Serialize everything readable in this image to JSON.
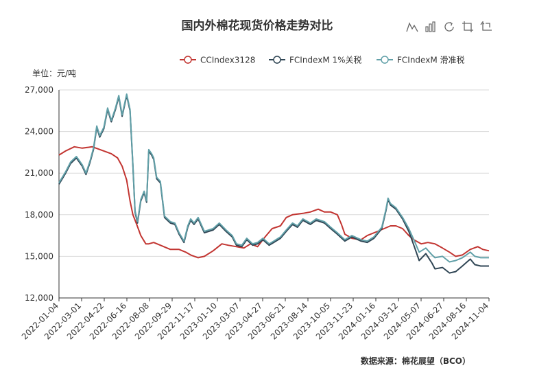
{
  "colors": {
    "CCIndex3128": "#c23531",
    "FCIndexM_tax1": "#2f4554",
    "FCIndexM_slide": "#61a0a8",
    "grid": "#d9d9d9",
    "axis": "#333333",
    "text": "#333333"
  },
  "toolbar": {
    "icons": [
      "line-chart-icon",
      "bar-chart-icon",
      "restore-icon",
      "zoom-icon",
      "zoom-reset-icon"
    ]
  },
  "footer": {
    "source": "数据来源：棉花展望（BCO）"
  },
  "chart_data": {
    "type": "line",
    "title": "国内外棉花现货价格走势对比",
    "unit_label": "单位：元/吨",
    "legend_position": "top-right",
    "grid": true,
    "ylim": [
      12000,
      27000
    ],
    "yticks": [
      12000,
      15000,
      18000,
      21000,
      24000,
      27000
    ],
    "ytick_labels": [
      "12,000",
      "15,000",
      "18,000",
      "21,000",
      "24,000",
      "27,000"
    ],
    "xlim": [
      "2022-01-04",
      "2024-11-04"
    ],
    "xtick_labels": [
      "2022-01-04",
      "2022-03-01",
      "2022-04-22",
      "2022-06-16",
      "2022-08-08",
      "2022-09-29",
      "2022-11-17",
      "2023-01-10",
      "2023-03-07",
      "2023-04-27",
      "2023-06-21",
      "2023-08-14",
      "2023-10-05",
      "2023-11-23",
      "2024-01-16",
      "2024-03-12",
      "2024-05-07",
      "2024-06-27",
      "2024-08-16",
      "2024-11-04"
    ],
    "series": [
      {
        "name": "CCIndex3128",
        "points": [
          [
            "2022-01-04",
            22300
          ],
          [
            "2022-01-20",
            22600
          ],
          [
            "2022-02-10",
            22900
          ],
          [
            "2022-03-01",
            22800
          ],
          [
            "2022-03-25",
            22900
          ],
          [
            "2022-04-22",
            22600
          ],
          [
            "2022-05-10",
            22400
          ],
          [
            "2022-05-25",
            22100
          ],
          [
            "2022-06-05",
            21500
          ],
          [
            "2022-06-16",
            20500
          ],
          [
            "2022-06-24",
            19000
          ],
          [
            "2022-07-01",
            18000
          ],
          [
            "2022-07-10",
            17300
          ],
          [
            "2022-07-20",
            16500
          ],
          [
            "2022-08-01",
            15900
          ],
          [
            "2022-08-08",
            15900
          ],
          [
            "2022-08-20",
            16000
          ],
          [
            "2022-09-05",
            15800
          ],
          [
            "2022-09-29",
            15500
          ],
          [
            "2022-10-20",
            15500
          ],
          [
            "2022-11-05",
            15300
          ],
          [
            "2022-11-17",
            15100
          ],
          [
            "2022-12-05",
            14900
          ],
          [
            "2022-12-20",
            15000
          ],
          [
            "2023-01-10",
            15400
          ],
          [
            "2023-01-31",
            15900
          ],
          [
            "2023-02-15",
            15800
          ],
          [
            "2023-03-07",
            15700
          ],
          [
            "2023-03-25",
            15600
          ],
          [
            "2023-04-10",
            15900
          ],
          [
            "2023-04-27",
            15700
          ],
          [
            "2023-05-15",
            16400
          ],
          [
            "2023-06-01",
            17000
          ],
          [
            "2023-06-21",
            17200
          ],
          [
            "2023-07-05",
            17800
          ],
          [
            "2023-07-20",
            18000
          ],
          [
            "2023-08-14",
            18100
          ],
          [
            "2023-09-01",
            18200
          ],
          [
            "2023-09-20",
            18400
          ],
          [
            "2023-10-05",
            18200
          ],
          [
            "2023-10-20",
            18200
          ],
          [
            "2023-11-05",
            18000
          ],
          [
            "2023-11-15",
            17300
          ],
          [
            "2023-11-23",
            16600
          ],
          [
            "2023-12-10",
            16300
          ],
          [
            "2024-01-01",
            16200
          ],
          [
            "2024-01-16",
            16500
          ],
          [
            "2024-02-10",
            16800
          ],
          [
            "2024-03-12",
            17200
          ],
          [
            "2024-03-25",
            17200
          ],
          [
            "2024-04-10",
            17000
          ],
          [
            "2024-04-25",
            16500
          ],
          [
            "2024-05-07",
            16200
          ],
          [
            "2024-05-25",
            15900
          ],
          [
            "2024-06-10",
            16000
          ],
          [
            "2024-06-27",
            15900
          ],
          [
            "2024-07-15",
            15600
          ],
          [
            "2024-08-01",
            15300
          ],
          [
            "2024-08-16",
            15000
          ],
          [
            "2024-09-01",
            15100
          ],
          [
            "2024-09-20",
            15500
          ],
          [
            "2024-10-08",
            15700
          ],
          [
            "2024-10-20",
            15500
          ],
          [
            "2024-11-04",
            15400
          ]
        ]
      },
      {
        "name": "FCIndexM 1%关税",
        "points": [
          [
            "2022-01-04",
            20200
          ],
          [
            "2022-01-20",
            21000
          ],
          [
            "2022-02-01",
            21700
          ],
          [
            "2022-02-15",
            22100
          ],
          [
            "2022-03-01",
            21500
          ],
          [
            "2022-03-10",
            20900
          ],
          [
            "2022-03-20",
            21800
          ],
          [
            "2022-03-28",
            22700
          ],
          [
            "2022-04-05",
            24300
          ],
          [
            "2022-04-12",
            23600
          ],
          [
            "2022-04-22",
            24200
          ],
          [
            "2022-05-01",
            25600
          ],
          [
            "2022-05-10",
            24700
          ],
          [
            "2022-05-20",
            25600
          ],
          [
            "2022-05-28",
            26500
          ],
          [
            "2022-06-05",
            25100
          ],
          [
            "2022-06-16",
            26600
          ],
          [
            "2022-06-24",
            25500
          ],
          [
            "2022-07-01",
            21500
          ],
          [
            "2022-07-06",
            18200
          ],
          [
            "2022-07-12",
            17400
          ],
          [
            "2022-07-20",
            19000
          ],
          [
            "2022-07-28",
            19600
          ],
          [
            "2022-08-03",
            18900
          ],
          [
            "2022-08-08",
            22600
          ],
          [
            "2022-08-15",
            22300
          ],
          [
            "2022-08-20",
            22000
          ],
          [
            "2022-08-27",
            20600
          ],
          [
            "2022-09-05",
            20300
          ],
          [
            "2022-09-15",
            17800
          ],
          [
            "2022-09-29",
            17400
          ],
          [
            "2022-10-10",
            17300
          ],
          [
            "2022-10-20",
            16600
          ],
          [
            "2022-11-01",
            16000
          ],
          [
            "2022-11-10",
            17100
          ],
          [
            "2022-11-17",
            17600
          ],
          [
            "2022-11-25",
            17300
          ],
          [
            "2022-12-05",
            17700
          ],
          [
            "2022-12-20",
            16700
          ],
          [
            "2023-01-10",
            16900
          ],
          [
            "2023-01-25",
            17300
          ],
          [
            "2023-02-10",
            16800
          ],
          [
            "2023-02-25",
            16400
          ],
          [
            "2023-03-07",
            15800
          ],
          [
            "2023-03-20",
            15700
          ],
          [
            "2023-04-01",
            16200
          ],
          [
            "2023-04-15",
            15800
          ],
          [
            "2023-04-27",
            15900
          ],
          [
            "2023-05-10",
            16200
          ],
          [
            "2023-05-25",
            15800
          ],
          [
            "2023-06-05",
            16000
          ],
          [
            "2023-06-21",
            16300
          ],
          [
            "2023-07-05",
            16800
          ],
          [
            "2023-07-20",
            17300
          ],
          [
            "2023-08-01",
            17100
          ],
          [
            "2023-08-14",
            17600
          ],
          [
            "2023-09-01",
            17300
          ],
          [
            "2023-09-15",
            17600
          ],
          [
            "2023-10-05",
            17400
          ],
          [
            "2023-10-20",
            17000
          ],
          [
            "2023-11-05",
            16600
          ],
          [
            "2023-11-23",
            16100
          ],
          [
            "2023-12-10",
            16400
          ],
          [
            "2024-01-01",
            16100
          ],
          [
            "2024-01-16",
            16000
          ],
          [
            "2024-02-01",
            16300
          ],
          [
            "2024-02-20",
            17000
          ],
          [
            "2024-03-01",
            18300
          ],
          [
            "2024-03-06",
            19100
          ],
          [
            "2024-03-12",
            18700
          ],
          [
            "2024-03-25",
            18400
          ],
          [
            "2024-04-10",
            17700
          ],
          [
            "2024-04-25",
            16800
          ],
          [
            "2024-05-07",
            15800
          ],
          [
            "2024-05-20",
            14700
          ],
          [
            "2024-06-05",
            15200
          ],
          [
            "2024-06-20",
            14500
          ],
          [
            "2024-06-27",
            14100
          ],
          [
            "2024-07-15",
            14200
          ],
          [
            "2024-08-01",
            13800
          ],
          [
            "2024-08-16",
            13900
          ],
          [
            "2024-09-01",
            14300
          ],
          [
            "2024-09-20",
            14800
          ],
          [
            "2024-10-01",
            14400
          ],
          [
            "2024-10-15",
            14300
          ],
          [
            "2024-11-04",
            14300
          ]
        ]
      },
      {
        "name": "FCIndexM 滑准税",
        "points": [
          [
            "2022-01-04",
            20300
          ],
          [
            "2022-01-20",
            21100
          ],
          [
            "2022-02-01",
            21800
          ],
          [
            "2022-02-15",
            22200
          ],
          [
            "2022-03-01",
            21600
          ],
          [
            "2022-03-10",
            21000
          ],
          [
            "2022-03-20",
            21900
          ],
          [
            "2022-03-28",
            22800
          ],
          [
            "2022-04-05",
            24400
          ],
          [
            "2022-04-12",
            23700
          ],
          [
            "2022-04-22",
            24300
          ],
          [
            "2022-05-01",
            25700
          ],
          [
            "2022-05-10",
            24800
          ],
          [
            "2022-05-20",
            25700
          ],
          [
            "2022-05-28",
            26600
          ],
          [
            "2022-06-05",
            25200
          ],
          [
            "2022-06-16",
            26700
          ],
          [
            "2022-06-24",
            25600
          ],
          [
            "2022-07-01",
            21600
          ],
          [
            "2022-07-06",
            18300
          ],
          [
            "2022-07-12",
            17500
          ],
          [
            "2022-07-20",
            19100
          ],
          [
            "2022-07-28",
            19700
          ],
          [
            "2022-08-03",
            19000
          ],
          [
            "2022-08-08",
            22700
          ],
          [
            "2022-08-15",
            22400
          ],
          [
            "2022-08-20",
            22100
          ],
          [
            "2022-08-27",
            20700
          ],
          [
            "2022-09-05",
            20400
          ],
          [
            "2022-09-15",
            17900
          ],
          [
            "2022-09-29",
            17500
          ],
          [
            "2022-10-10",
            17400
          ],
          [
            "2022-10-20",
            16700
          ],
          [
            "2022-11-01",
            16100
          ],
          [
            "2022-11-10",
            17200
          ],
          [
            "2022-11-17",
            17700
          ],
          [
            "2022-11-25",
            17400
          ],
          [
            "2022-12-05",
            17800
          ],
          [
            "2022-12-20",
            16800
          ],
          [
            "2023-01-10",
            17000
          ],
          [
            "2023-01-25",
            17400
          ],
          [
            "2023-02-10",
            16900
          ],
          [
            "2023-02-25",
            16500
          ],
          [
            "2023-03-07",
            15900
          ],
          [
            "2023-03-20",
            15800
          ],
          [
            "2023-04-01",
            16300
          ],
          [
            "2023-04-15",
            15900
          ],
          [
            "2023-04-27",
            16000
          ],
          [
            "2023-05-10",
            16300
          ],
          [
            "2023-05-25",
            15900
          ],
          [
            "2023-06-05",
            16100
          ],
          [
            "2023-06-21",
            16400
          ],
          [
            "2023-07-05",
            16900
          ],
          [
            "2023-07-20",
            17400
          ],
          [
            "2023-08-01",
            17200
          ],
          [
            "2023-08-14",
            17700
          ],
          [
            "2023-09-01",
            17400
          ],
          [
            "2023-09-15",
            17700
          ],
          [
            "2023-10-05",
            17500
          ],
          [
            "2023-10-20",
            17100
          ],
          [
            "2023-11-05",
            16700
          ],
          [
            "2023-11-23",
            16200
          ],
          [
            "2023-12-10",
            16500
          ],
          [
            "2024-01-01",
            16200
          ],
          [
            "2024-01-16",
            16100
          ],
          [
            "2024-02-01",
            16400
          ],
          [
            "2024-02-20",
            17100
          ],
          [
            "2024-03-01",
            18400
          ],
          [
            "2024-03-06",
            19200
          ],
          [
            "2024-03-12",
            18800
          ],
          [
            "2024-03-25",
            18500
          ],
          [
            "2024-04-10",
            17800
          ],
          [
            "2024-04-25",
            17000
          ],
          [
            "2024-05-07",
            16200
          ],
          [
            "2024-05-20",
            15300
          ],
          [
            "2024-06-05",
            15600
          ],
          [
            "2024-06-20",
            15100
          ],
          [
            "2024-06-27",
            14900
          ],
          [
            "2024-07-15",
            15000
          ],
          [
            "2024-08-01",
            14600
          ],
          [
            "2024-08-16",
            14700
          ],
          [
            "2024-09-01",
            14900
          ],
          [
            "2024-09-20",
            15300
          ],
          [
            "2024-10-01",
            15000
          ],
          [
            "2024-10-15",
            14900
          ],
          [
            "2024-11-04",
            14900
          ]
        ]
      }
    ]
  }
}
